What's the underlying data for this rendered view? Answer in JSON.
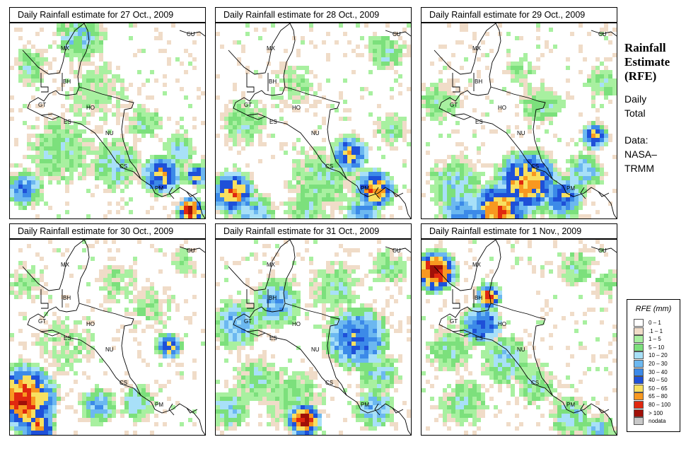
{
  "panels": [
    {
      "title": "Daily Rainfall estimate for  27 Oct., 2009"
    },
    {
      "title": "Daily Rainfall estimate for  28 Oct., 2009"
    },
    {
      "title": "Daily Rainfall estimate for  29 Oct., 2009"
    },
    {
      "title": "Daily Rainfall estimate for  30 Oct., 2009"
    },
    {
      "title": "Daily Rainfall estimate for  31 Oct., 2009"
    },
    {
      "title": "Daily Rainfall estimate for  1 Nov., 2009"
    }
  ],
  "country_labels": [
    "MX",
    "BH",
    "GT",
    "HO",
    "ES",
    "NU",
    "CS",
    "PM",
    "CU"
  ],
  "side": {
    "heading_lines": [
      "Rainfall",
      "Estimate",
      "(RFE)"
    ],
    "desc_lines": [
      "Daily",
      "Total"
    ],
    "source_lines": [
      "Data:",
      "NASA–",
      "TRMM"
    ]
  },
  "legend": {
    "title": "RFE (mm)",
    "items": [
      {
        "label": "0 – 1",
        "color": "#ffffff"
      },
      {
        "label": ".1 – 1",
        "color": "#f0dcc8"
      },
      {
        "label": "1 – 5",
        "color": "#a8f0a0"
      },
      {
        "label": "5 – 10",
        "color": "#7ce07c"
      },
      {
        "label": "10 – 20",
        "color": "#a8e0f8"
      },
      {
        "label": "20 – 30",
        "color": "#6cb8f0"
      },
      {
        "label": "30 – 40",
        "color": "#3c8ae8"
      },
      {
        "label": "40 – 50",
        "color": "#1e50d8"
      },
      {
        "label": "50 – 65",
        "color": "#f8e060"
      },
      {
        "label": "65 – 80",
        "color": "#f89820"
      },
      {
        "label": "80 – 100",
        "color": "#e02810"
      },
      {
        "label": "> 100",
        "color": "#a01008"
      },
      {
        "label": "nodata",
        "color": "#c8c8c8"
      }
    ]
  }
}
